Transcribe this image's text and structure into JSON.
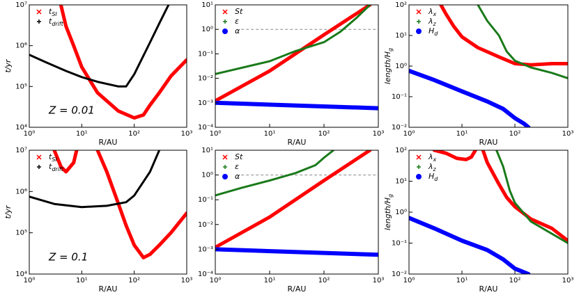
{
  "chart_data": [
    {
      "type": "line",
      "xlabel": "R/AU",
      "ylabel": "t/yr",
      "annotation": "Z = 0.01",
      "log_x": true,
      "log_y": true,
      "legend": "upper left",
      "xlim": [
        1,
        1000
      ],
      "ylim": [
        10000,
        10000000
      ],
      "xticks": [
        {
          "value": 1,
          "label": "10⁰"
        },
        {
          "value": 10,
          "label": "10¹"
        },
        {
          "value": 100,
          "label": "10²"
        },
        {
          "value": 1000,
          "label": "10³"
        }
      ],
      "yticks": [
        {
          "value": 10000,
          "label": "10⁴"
        },
        {
          "value": 100000,
          "label": "10⁵"
        },
        {
          "value": 1000000,
          "label": "10⁶"
        },
        {
          "value": 10000000,
          "label": "10⁷"
        }
      ],
      "series": [
        {
          "name": "t",
          "name_sub": "SI",
          "color": "#ff0000",
          "marker": "x",
          "x": [
            4,
            5,
            7,
            10,
            20,
            50,
            100,
            150,
            200,
            300,
            500,
            1000
          ],
          "values": [
            10000000,
            3000000,
            1000000,
            300000,
            70000,
            25000,
            17000,
            20000,
            35000,
            70000,
            180000,
            450000
          ]
        },
        {
          "name": "t",
          "name_sub": "drift",
          "color": "#000000",
          "marker": "+",
          "x": [
            1,
            2,
            5,
            10,
            20,
            50,
            70,
            100,
            200,
            300,
            450
          ],
          "values": [
            600000,
            400000,
            240000,
            170000,
            130000,
            100000,
            100000,
            200000,
            1200000,
            3500000,
            10000000
          ]
        }
      ]
    },
    {
      "type": "line",
      "xlabel": "R/AU",
      "log_x": true,
      "log_y": true,
      "legend": "upper left",
      "xlim": [
        1,
        1000
      ],
      "ylim": [
        0.0001,
        10
      ],
      "xticks": [
        {
          "value": 1,
          "label": "10⁰"
        },
        {
          "value": 10,
          "label": "10¹"
        },
        {
          "value": 100,
          "label": "10²"
        },
        {
          "value": 1000,
          "label": "10³"
        }
      ],
      "yticks": [
        {
          "value": 0.0001,
          "label": "10⁻⁴"
        },
        {
          "value": 0.001,
          "label": "10⁻³"
        },
        {
          "value": 0.01,
          "label": "10⁻²"
        },
        {
          "value": 0.1,
          "label": "10⁻¹"
        },
        {
          "value": 1,
          "label": "10⁰"
        },
        {
          "value": 10,
          "label": "10¹"
        }
      ],
      "reference_line": {
        "y": 1,
        "x_start": 3
      },
      "series": [
        {
          "name": "St",
          "color": "#ff0000",
          "marker": "x",
          "x": [
            1,
            10,
            100,
            700
          ],
          "values": [
            0.0012,
            0.02,
            0.6,
            10
          ]
        },
        {
          "name": "ε",
          "color": "#1a7a1a",
          "marker": "+",
          "x": [
            1,
            10,
            30,
            100,
            200,
            400,
            700
          ],
          "values": [
            0.015,
            0.05,
            0.13,
            0.3,
            0.8,
            3,
            10
          ]
        },
        {
          "name": "α",
          "color": "#0000ff",
          "marker": "o",
          "x": [
            1,
            1000
          ],
          "values": [
            0.001,
            0.0006
          ]
        }
      ]
    },
    {
      "type": "line",
      "xlabel": "R/AU",
      "ylabel": "length/H",
      "ylabel_sub": "g",
      "log_x": true,
      "log_y": true,
      "legend": "upper left",
      "xlim": [
        1,
        1000
      ],
      "ylim": [
        0.01,
        100
      ],
      "xticks": [
        {
          "value": 1,
          "label": "10⁰"
        },
        {
          "value": 10,
          "label": "10¹"
        },
        {
          "value": 100,
          "label": "10²"
        },
        {
          "value": 1000,
          "label": "10³"
        }
      ],
      "yticks": [
        {
          "value": 0.01,
          "label": "10⁻²"
        },
        {
          "value": 0.1,
          "label": "10⁻¹"
        },
        {
          "value": 1,
          "label": "10⁰"
        },
        {
          "value": 10,
          "label": "10¹"
        },
        {
          "value": 100,
          "label": "10²"
        }
      ],
      "series": [
        {
          "name": "λ",
          "name_sub": "x",
          "color": "#ff0000",
          "marker": "x",
          "x": [
            4,
            5,
            7,
            10,
            20,
            50,
            100,
            200,
            500,
            1000
          ],
          "values": [
            100,
            50,
            20,
            9,
            4,
            2,
            1.2,
            1.1,
            1.2,
            1.2
          ]
        },
        {
          "name": "λ",
          "name_sub": "z",
          "color": "#1a7a1a",
          "marker": "+",
          "x": [
            20,
            30,
            50,
            70,
            100,
            200,
            500,
            1000
          ],
          "values": [
            100,
            30,
            10,
            3,
            1.5,
            0.9,
            0.6,
            0.4
          ]
        },
        {
          "name": "H",
          "name_sub": "d",
          "color": "#0000ff",
          "marker": "o",
          "x": [
            1,
            3,
            10,
            30,
            60,
            100,
            150,
            180
          ],
          "values": [
            0.7,
            0.35,
            0.15,
            0.07,
            0.04,
            0.02,
            0.013,
            0.01
          ]
        }
      ]
    },
    {
      "type": "line",
      "xlabel": "R/AU",
      "ylabel": "t/yr",
      "annotation": "Z = 0.1",
      "log_x": true,
      "log_y": true,
      "legend": "upper left",
      "xlim": [
        1,
        1000
      ],
      "ylim": [
        10000,
        10000000
      ],
      "xticks": [
        {
          "value": 1,
          "label": "10⁰"
        },
        {
          "value": 10,
          "label": "10¹"
        },
        {
          "value": 100,
          "label": "10²"
        },
        {
          "value": 1000,
          "label": "10³"
        }
      ],
      "yticks": [
        {
          "value": 10000,
          "label": "10⁴"
        },
        {
          "value": 100000,
          "label": "10⁵"
        },
        {
          "value": 1000000,
          "label": "10⁶"
        },
        {
          "value": 10000000,
          "label": "10⁷"
        }
      ],
      "series": [
        {
          "name": "t",
          "name_sub": "SI",
          "color": "#ff0000",
          "marker": "x",
          "x": [
            3,
            4,
            5,
            7,
            8,
            14,
            20,
            30,
            50,
            70,
            100,
            150,
            200,
            300,
            500,
            1000
          ],
          "values": [
            10000000,
            4000000,
            3000000,
            5000000,
            10000000,
            null,
            10000000,
            3000000,
            500000,
            150000,
            50000,
            25000,
            30000,
            50000,
            100000,
            300000
          ]
        },
        {
          "name": "t",
          "name_sub": "drift",
          "color": "#000000",
          "marker": "+",
          "x": [
            1,
            3,
            10,
            30,
            70,
            100,
            200,
            300
          ],
          "values": [
            750000,
            500000,
            420000,
            450000,
            550000,
            800000,
            3000000,
            10000000
          ]
        }
      ]
    },
    {
      "type": "line",
      "xlabel": "R/AU",
      "log_x": true,
      "log_y": true,
      "legend": "upper left",
      "xlim": [
        1,
        1000
      ],
      "ylim": [
        0.0001,
        10
      ],
      "xticks": [
        {
          "value": 1,
          "label": "10⁰"
        },
        {
          "value": 10,
          "label": "10¹"
        },
        {
          "value": 100,
          "label": "10²"
        },
        {
          "value": 1000,
          "label": "10³"
        }
      ],
      "yticks": [
        {
          "value": 0.0001,
          "label": "10⁻⁴"
        },
        {
          "value": 0.001,
          "label": "10⁻³"
        },
        {
          "value": 0.01,
          "label": "10⁻²"
        },
        {
          "value": 0.1,
          "label": "10⁻¹"
        },
        {
          "value": 1,
          "label": "10⁰"
        },
        {
          "value": 10,
          "label": "10¹"
        }
      ],
      "reference_line": {
        "y": 1,
        "x_start": 3
      },
      "series": [
        {
          "name": "St",
          "color": "#ff0000",
          "marker": "x",
          "x": [
            1,
            10,
            100,
            700
          ],
          "values": [
            0.0012,
            0.02,
            0.6,
            10
          ]
        },
        {
          "name": "ε",
          "color": "#1a7a1a",
          "marker": "+",
          "x": [
            1,
            3,
            10,
            30,
            70,
            100,
            150
          ],
          "values": [
            0.15,
            0.3,
            0.6,
            1.2,
            2.5,
            5,
            10
          ]
        },
        {
          "name": "α",
          "color": "#0000ff",
          "marker": "o",
          "x": [
            1,
            1000
          ],
          "values": [
            0.001,
            0.0006
          ]
        }
      ]
    },
    {
      "type": "line",
      "xlabel": "R/AU",
      "ylabel": "length/H",
      "ylabel_sub": "g",
      "log_x": true,
      "log_y": true,
      "legend": "upper left",
      "xlim": [
        1,
        1000
      ],
      "ylim": [
        0.01,
        100
      ],
      "xticks": [
        {
          "value": 1,
          "label": "10⁰"
        },
        {
          "value": 10,
          "label": "10¹"
        },
        {
          "value": 100,
          "label": "10²"
        },
        {
          "value": 1000,
          "label": "10³"
        }
      ],
      "yticks": [
        {
          "value": 0.01,
          "label": "10⁻²"
        },
        {
          "value": 0.1,
          "label": "10⁻¹"
        },
        {
          "value": 1,
          "label": "10⁰"
        },
        {
          "value": 10,
          "label": "10¹"
        },
        {
          "value": 100,
          "label": "10²"
        }
      ],
      "series": [
        {
          "name": "λ",
          "name_sub": "x",
          "color": "#ff0000",
          "marker": "x",
          "x": [
            3,
            5,
            8,
            12,
            15,
            18,
            22,
            25,
            30,
            50,
            70,
            100,
            200,
            500,
            1000
          ],
          "values": [
            100,
            80,
            55,
            50,
            60,
            100,
            null,
            100,
            40,
            8,
            3,
            1.5,
            0.6,
            0.3,
            0.12
          ]
        },
        {
          "name": "λ",
          "name_sub": "z",
          "color": "#1a7a1a",
          "marker": "+",
          "x": [
            45,
            60,
            80,
            100,
            200,
            500,
            1000
          ],
          "values": [
            100,
            30,
            5,
            2,
            0.5,
            0.2,
            0.1
          ]
        },
        {
          "name": "H",
          "name_sub": "d",
          "color": "#0000ff",
          "marker": "o",
          "x": [
            1,
            3,
            10,
            30,
            60,
            100,
            180
          ],
          "values": [
            0.65,
            0.3,
            0.12,
            0.06,
            0.03,
            0.015,
            0.01
          ]
        }
      ]
    }
  ]
}
